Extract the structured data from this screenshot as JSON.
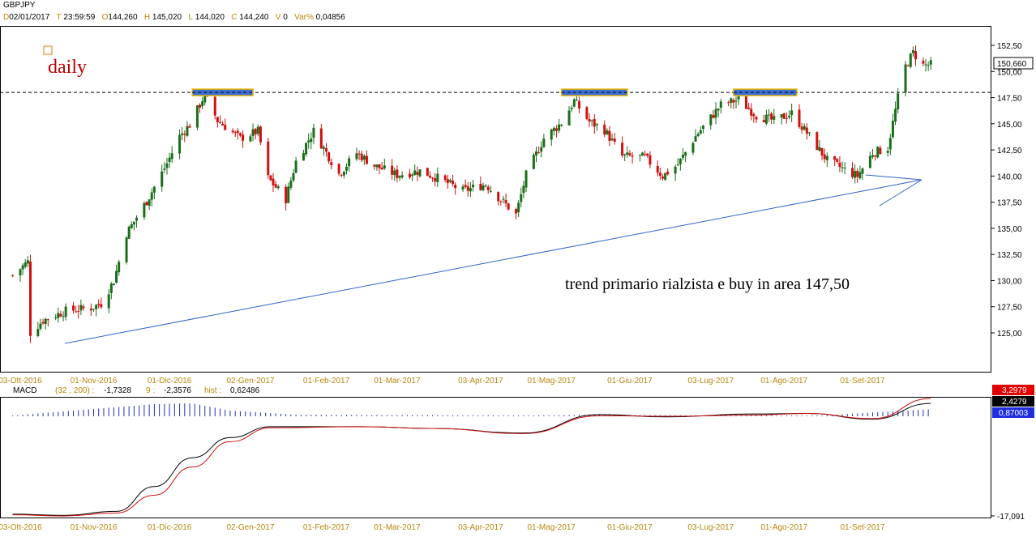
{
  "symbol": "GBPJPY",
  "header": {
    "d_key": "D",
    "date": "02/01/2017",
    "t_key": "T",
    "time": "23:59:59",
    "o_key": "O",
    "open": "144,260",
    "h_key": "H",
    "high": "145,020",
    "l_key": "L",
    "low": "144,020",
    "c_key": "C",
    "close": "144,240",
    "v_key": "V",
    "volume": "0",
    "var_key": "Var%",
    "var": "0,04856"
  },
  "macd_header": {
    "name": "MACD",
    "params": "(32 , 200) :",
    "macd": "-1,7328",
    "signal_key": "9 :",
    "signal": "-2,3576",
    "hist_key": "hist :",
    "hist": "0,62486"
  },
  "colors": {
    "up": "#1a6e1a",
    "down": "#d01010",
    "trendline": "#2f63c8",
    "resistance_box": "#3b6fd8",
    "resistance_border": "#e8b400",
    "macd_line": "#000000",
    "signal_line": "#d01010",
    "histogram": "#1f2fb8",
    "annotation_text": "#c00000"
  },
  "labels": {
    "daily": "daily",
    "annotation": "trend primario rialzista e buy in area 147,50",
    "last_price": "150,660",
    "macd_val_red": "3,2979",
    "macd_val_black": "2,4279",
    "macd_val_blue": "0,87003",
    "macd_min": "-17,091"
  },
  "chart_data": [
    {
      "type": "candlestick",
      "title": "GBPJPY",
      "timeframe": "daily",
      "y_ticks": [
        "152,50",
        "150,00",
        "147,50",
        "145,00",
        "142,50",
        "140,00",
        "137,50",
        "135,00",
        "132,50",
        "130,00",
        "127,50",
        "125,00"
      ],
      "x_ticks": [
        "03-Ott-2016",
        "01-Nov-2016",
        "01-Dic-2016",
        "02-Gen-2017",
        "01-Feb-2017",
        "01-Mar-2017",
        "03-Apr-2017",
        "01-Mag-2017",
        "01-Giu-2017",
        "03-Lug-2017",
        "01-Ago-2017",
        "01-Set-2017"
      ],
      "ylim": [
        122.5,
        154.0
      ],
      "resistance_level": 148.0,
      "close_path": [
        {
          "x": "2016-09-30",
          "y": 130.5
        },
        {
          "x": "2016-10-06",
          "y": 131.8
        },
        {
          "x": "2016-10-07",
          "y": 125.0
        },
        {
          "x": "2016-10-12",
          "y": 126.2
        },
        {
          "x": "2016-10-21",
          "y": 127.1
        },
        {
          "x": "2016-10-31",
          "y": 127.4
        },
        {
          "x": "2016-11-04",
          "y": 127.8
        },
        {
          "x": "2016-11-09",
          "y": 130.0
        },
        {
          "x": "2016-11-14",
          "y": 134.5
        },
        {
          "x": "2016-11-22",
          "y": 137.6
        },
        {
          "x": "2016-11-30",
          "y": 141.2
        },
        {
          "x": "2016-12-05",
          "y": 143.8
        },
        {
          "x": "2016-12-09",
          "y": 144.9
        },
        {
          "x": "2016-12-15",
          "y": 147.8
        },
        {
          "x": "2016-12-20",
          "y": 145.3
        },
        {
          "x": "2016-12-29",
          "y": 143.6
        },
        {
          "x": "2017-01-05",
          "y": 144.3
        },
        {
          "x": "2017-01-09",
          "y": 139.8
        },
        {
          "x": "2017-01-16",
          "y": 137.8
        },
        {
          "x": "2017-01-20",
          "y": 141.4
        },
        {
          "x": "2017-01-27",
          "y": 144.3
        },
        {
          "x": "2017-02-06",
          "y": 140.2
        },
        {
          "x": "2017-02-13",
          "y": 142.2
        },
        {
          "x": "2017-02-20",
          "y": 141.0
        },
        {
          "x": "2017-03-01",
          "y": 140.1
        },
        {
          "x": "2017-03-10",
          "y": 140.5
        },
        {
          "x": "2017-03-17",
          "y": 139.8
        },
        {
          "x": "2017-03-27",
          "y": 138.6
        },
        {
          "x": "2017-04-05",
          "y": 139.2
        },
        {
          "x": "2017-04-17",
          "y": 136.3
        },
        {
          "x": "2017-04-21",
          "y": 140.1
        },
        {
          "x": "2017-04-28",
          "y": 143.6
        },
        {
          "x": "2017-05-05",
          "y": 145.1
        },
        {
          "x": "2017-05-10",
          "y": 147.2
        },
        {
          "x": "2017-05-16",
          "y": 145.2
        },
        {
          "x": "2017-05-22",
          "y": 144.4
        },
        {
          "x": "2017-05-29",
          "y": 141.9
        },
        {
          "x": "2017-06-07",
          "y": 141.8
        },
        {
          "x": "2017-06-14",
          "y": 140.0
        },
        {
          "x": "2017-06-20",
          "y": 141.1
        },
        {
          "x": "2017-06-27",
          "y": 143.8
        },
        {
          "x": "2017-07-07",
          "y": 146.8
        },
        {
          "x": "2017-07-14",
          "y": 147.3
        },
        {
          "x": "2017-07-21",
          "y": 145.8
        },
        {
          "x": "2017-07-28",
          "y": 145.3
        },
        {
          "x": "2017-08-04",
          "y": 146.0
        },
        {
          "x": "2017-08-11",
          "y": 143.8
        },
        {
          "x": "2017-08-18",
          "y": 141.5
        },
        {
          "x": "2017-08-25",
          "y": 140.6
        },
        {
          "x": "2017-08-30",
          "y": 140.0
        },
        {
          "x": "2017-09-05",
          "y": 142.2
        },
        {
          "x": "2017-09-11",
          "y": 142.7
        },
        {
          "x": "2017-09-15",
          "y": 147.5
        },
        {
          "x": "2017-09-18",
          "y": 150.5
        },
        {
          "x": "2017-09-21",
          "y": 151.8
        },
        {
          "x": "2017-09-25",
          "y": 150.6
        },
        {
          "x": "2017-09-28",
          "y": 150.66
        }
      ]
    },
    {
      "type": "line",
      "title": "MACD",
      "params": [
        32,
        200
      ],
      "series": [
        {
          "name": "MACD",
          "values": [
            {
              "x": "2016-09-30",
              "y": -16.8
            },
            {
              "x": "2016-10-20",
              "y": -17.0
            },
            {
              "x": "2016-11-10",
              "y": -16.3
            },
            {
              "x": "2016-11-25",
              "y": -12.0
            },
            {
              "x": "2016-12-10",
              "y": -7.0
            },
            {
              "x": "2016-12-25",
              "y": -3.5
            },
            {
              "x": "2017-01-10",
              "y": -1.6
            },
            {
              "x": "2017-02-15",
              "y": -1.6
            },
            {
              "x": "2017-03-15",
              "y": -1.9
            },
            {
              "x": "2017-04-20",
              "y": -2.7
            },
            {
              "x": "2017-05-20",
              "y": 0.5
            },
            {
              "x": "2017-06-15",
              "y": 0.1
            },
            {
              "x": "2017-07-20",
              "y": 0.6
            },
            {
              "x": "2017-08-10",
              "y": 0.7
            },
            {
              "x": "2017-09-05",
              "y": -0.3
            },
            {
              "x": "2017-09-28",
              "y": 2.43
            }
          ]
        },
        {
          "name": "9",
          "values": [
            {
              "x": "2016-09-30",
              "y": -16.9
            },
            {
              "x": "2016-10-20",
              "y": -17.1
            },
            {
              "x": "2016-11-10",
              "y": -16.6
            },
            {
              "x": "2016-11-25",
              "y": -13.5
            },
            {
              "x": "2016-12-10",
              "y": -8.6
            },
            {
              "x": "2016-12-25",
              "y": -4.2
            },
            {
              "x": "2017-01-10",
              "y": -1.8
            },
            {
              "x": "2017-02-15",
              "y": -1.6
            },
            {
              "x": "2017-03-15",
              "y": -1.9
            },
            {
              "x": "2017-04-20",
              "y": -2.8
            },
            {
              "x": "2017-05-20",
              "y": 0.3
            },
            {
              "x": "2017-06-15",
              "y": 0.2
            },
            {
              "x": "2017-07-20",
              "y": 0.4
            },
            {
              "x": "2017-08-10",
              "y": 0.7
            },
            {
              "x": "2017-09-05",
              "y": -0.2
            },
            {
              "x": "2017-09-28",
              "y": 3.3
            }
          ]
        },
        {
          "name": "hist",
          "values": [
            {
              "x": "2016-09-30",
              "y": 0.1
            },
            {
              "x": "2016-11-25",
              "y": 1.5
            },
            {
              "x": "2016-12-10",
              "y": 1.6
            },
            {
              "x": "2016-12-25",
              "y": 0.7
            },
            {
              "x": "2017-01-20",
              "y": 0.2
            },
            {
              "x": "2017-04-20",
              "y": 0.1
            },
            {
              "x": "2017-05-20",
              "y": 0.2
            },
            {
              "x": "2017-08-10",
              "y": 0.0
            },
            {
              "x": "2017-09-28",
              "y": 0.87
            }
          ]
        }
      ]
    }
  ]
}
